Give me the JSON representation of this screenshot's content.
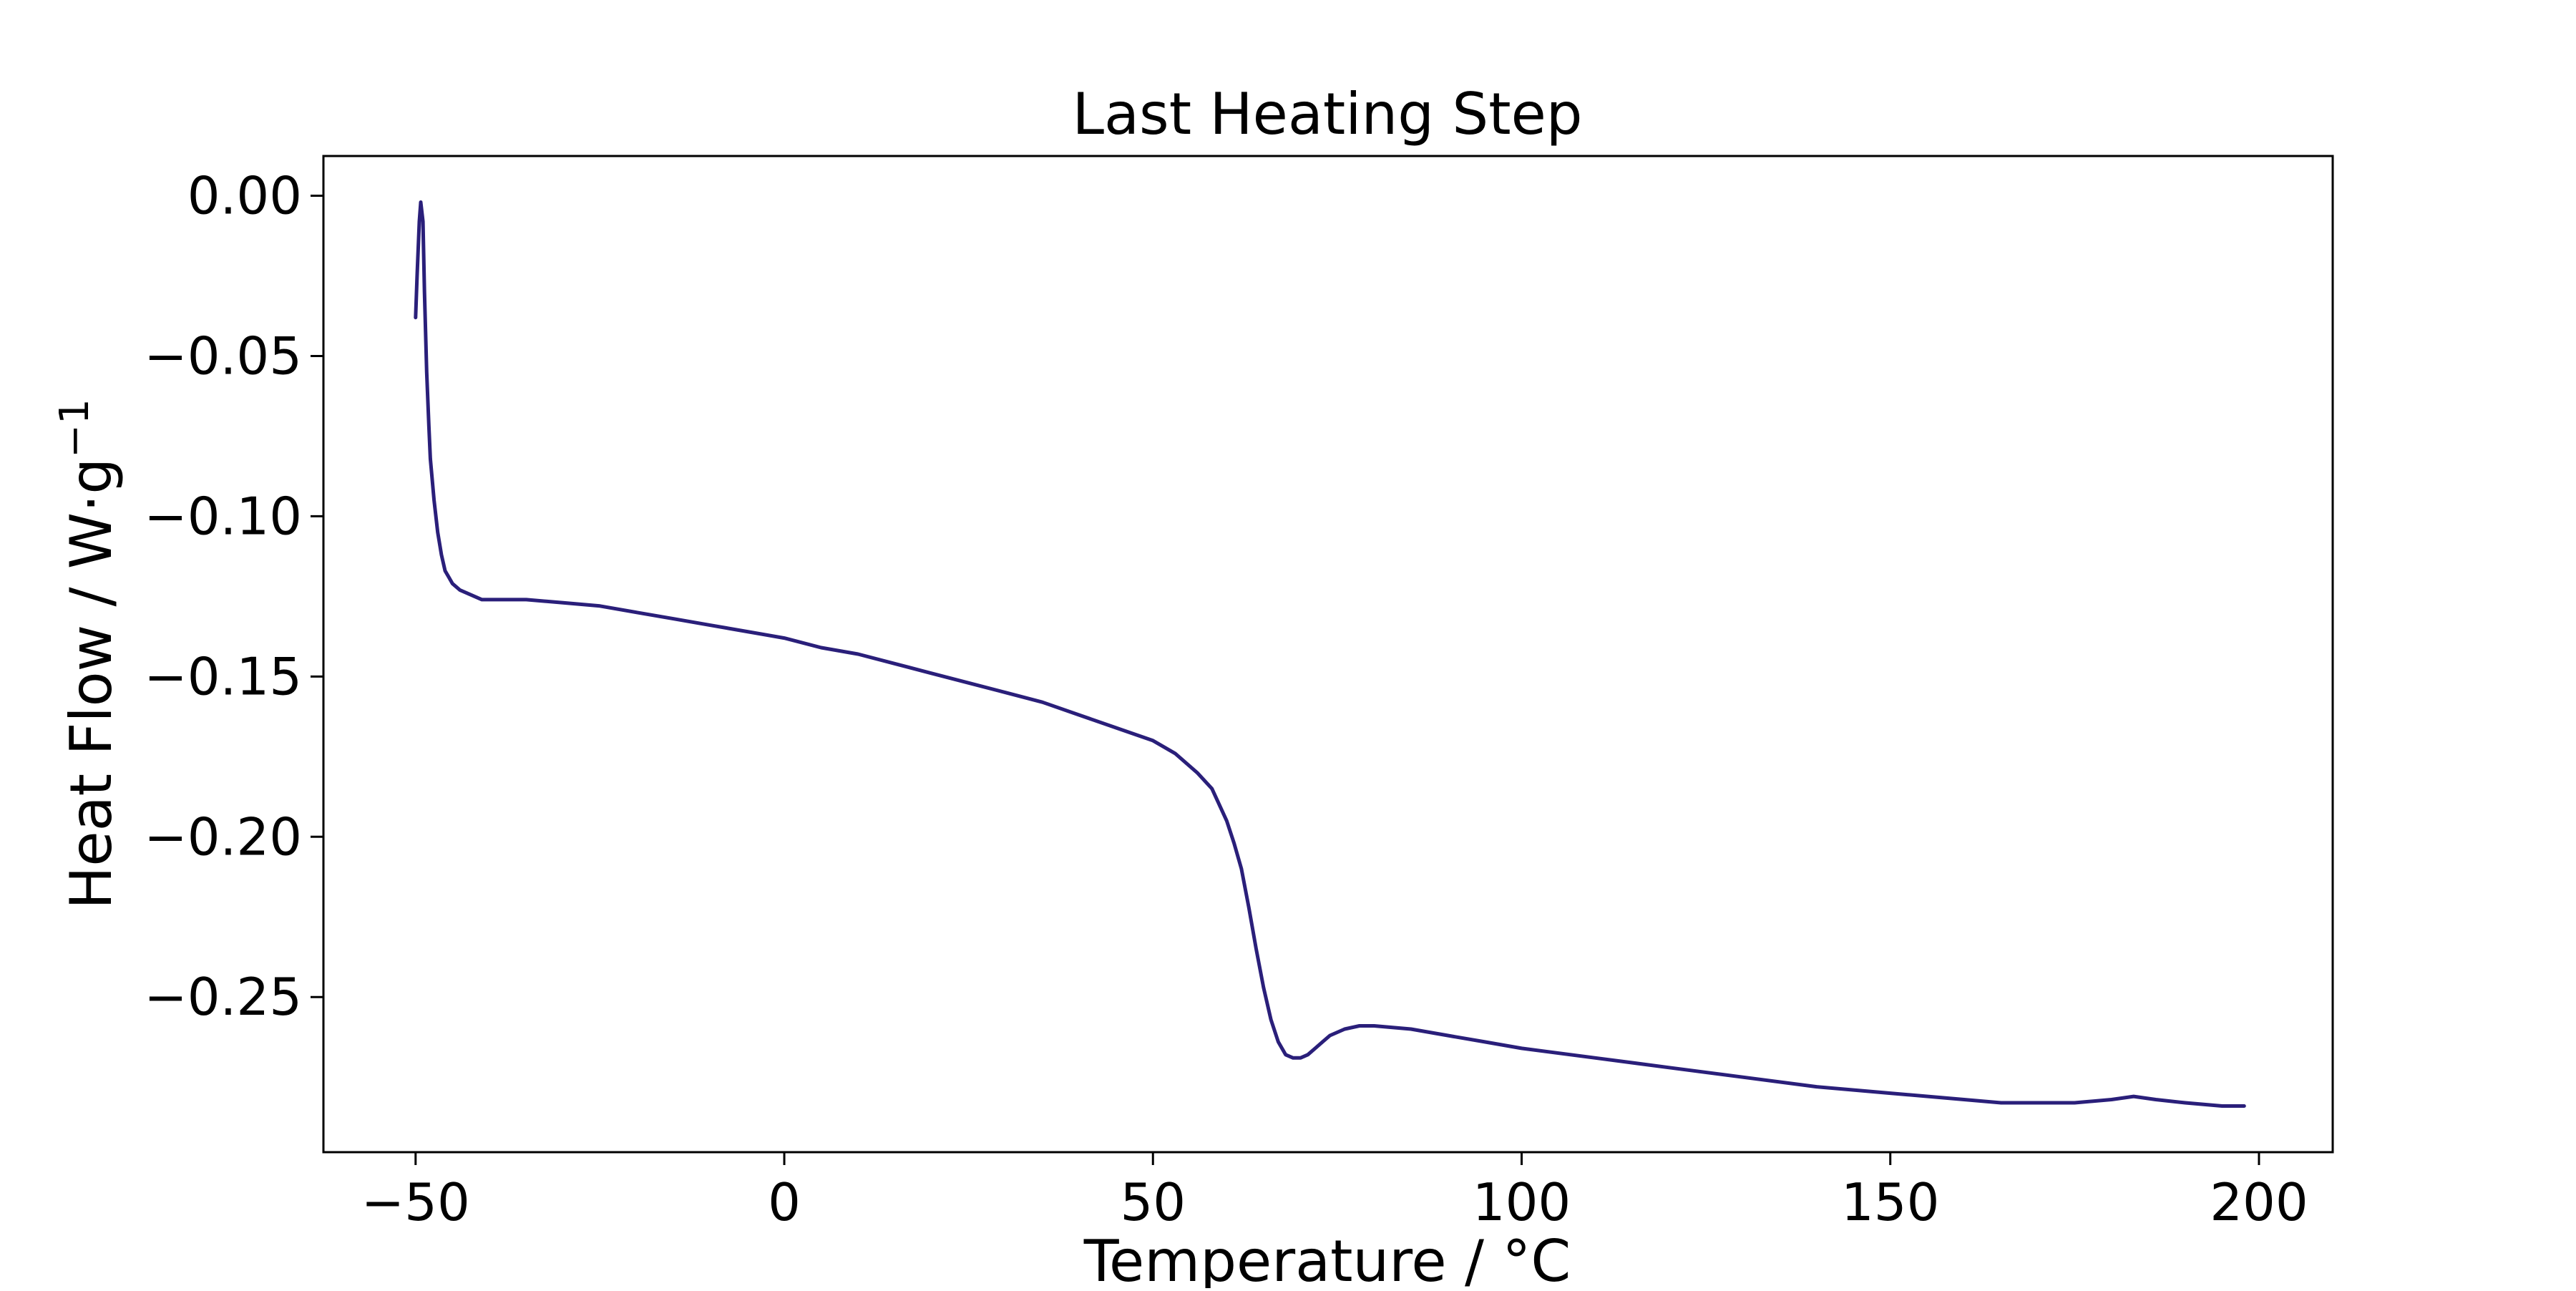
{
  "chart_data": {
    "type": "line",
    "title": "Last Heating Step",
    "xlabel": "Temperature / °C",
    "ylabel": "Heat Flow / W·g",
    "ylabel_superscript": "−1",
    "xlim": [
      -62.5,
      210
    ],
    "ylim": [
      -0.2984,
      0.0124
    ],
    "x_ticks": [
      -50,
      0,
      50,
      100,
      150,
      200
    ],
    "x_tick_labels": [
      "−50",
      "0",
      "50",
      "100",
      "150",
      "200"
    ],
    "y_ticks": [
      0.0,
      -0.05,
      -0.1,
      -0.15,
      -0.2,
      -0.25
    ],
    "y_tick_labels": [
      "0.00",
      "−0.05",
      "−0.10",
      "−0.15",
      "−0.20",
      "−0.25"
    ],
    "grid": false,
    "series": [
      {
        "color": "#2a1f7a",
        "x": [
          -50.0,
          -49.8,
          -49.5,
          -49.3,
          -49.0,
          -48.8,
          -48.5,
          -48.2,
          -48.0,
          -47.5,
          -47.0,
          -46.5,
          -46.0,
          -45.5,
          -45.0,
          -44.0,
          -43.0,
          -42.0,
          -41.0,
          -40.0,
          -38.0,
          -35.0,
          -30.0,
          -25.0,
          -20.0,
          -15.0,
          -10.0,
          -5.0,
          0.0,
          5.0,
          10.0,
          15.0,
          20.0,
          25.0,
          30.0,
          35.0,
          40.0,
          45.0,
          50.0,
          53.0,
          56.0,
          58.0,
          60.0,
          61.0,
          62.0,
          63.0,
          64.0,
          65.0,
          66.0,
          67.0,
          68.0,
          69.0,
          70.0,
          71.0,
          72.0,
          73.0,
          74.0,
          75.0,
          76.0,
          78.0,
          80.0,
          85.0,
          90.0,
          95.0,
          100.0,
          110.0,
          120.0,
          130.0,
          140.0,
          150.0,
          160.0,
          165.0,
          170.0,
          175.0,
          180.0,
          183.0,
          186.0,
          190.0,
          195.0,
          198.0
        ],
        "y": [
          -0.038,
          -0.025,
          -0.008,
          -0.002,
          -0.008,
          -0.03,
          -0.055,
          -0.072,
          -0.082,
          -0.095,
          -0.105,
          -0.112,
          -0.117,
          -0.119,
          -0.121,
          -0.123,
          -0.124,
          -0.125,
          -0.126,
          -0.126,
          -0.126,
          -0.126,
          -0.127,
          -0.128,
          -0.13,
          -0.132,
          -0.134,
          -0.136,
          -0.138,
          -0.141,
          -0.143,
          -0.146,
          -0.149,
          -0.152,
          -0.155,
          -0.158,
          -0.162,
          -0.166,
          -0.17,
          -0.174,
          -0.18,
          -0.185,
          -0.195,
          -0.202,
          -0.21,
          -0.222,
          -0.235,
          -0.247,
          -0.257,
          -0.264,
          -0.268,
          -0.269,
          -0.269,
          -0.268,
          -0.266,
          -0.264,
          -0.262,
          -0.261,
          -0.26,
          -0.259,
          -0.259,
          -0.26,
          -0.262,
          -0.264,
          -0.266,
          -0.269,
          -0.272,
          -0.275,
          -0.278,
          -0.28,
          -0.282,
          -0.283,
          -0.283,
          -0.283,
          -0.282,
          -0.281,
          -0.282,
          -0.283,
          -0.284,
          -0.284
        ]
      }
    ]
  }
}
